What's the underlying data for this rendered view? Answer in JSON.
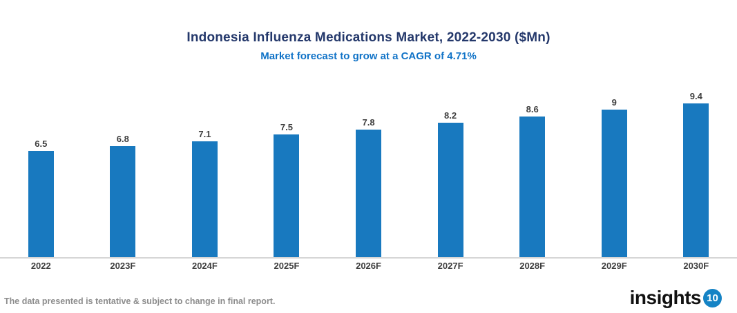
{
  "header": {
    "title": "Indonesia Influenza Medications Market, 2022-2030 ($Mn)",
    "subtitle": "Market forecast to grow at a CAGR of 4.71%"
  },
  "chart_data": {
    "type": "bar",
    "title": "Indonesia Influenza Medications Market, 2022-2030 ($Mn)",
    "subtitle": "Market forecast to grow at a CAGR of 4.71%",
    "categories": [
      "2022",
      "2023F",
      "2024F",
      "2025F",
      "2026F",
      "2027F",
      "2028F",
      "2029F",
      "2030F"
    ],
    "values": [
      6.5,
      6.8,
      7.1,
      7.5,
      7.8,
      8.2,
      8.6,
      9,
      9.4
    ],
    "data_labels": [
      "6.5",
      "6.8",
      "7.1",
      "7.5",
      "7.8",
      "8.2",
      "8.6",
      "9",
      "9.4"
    ],
    "xlabel": "",
    "ylabel": "",
    "ylim": [
      0,
      9.4
    ],
    "grid": false,
    "legend": "none",
    "bar_color": "#1879bf",
    "cagr_percent": "4.71%"
  },
  "footer": {
    "disclaimer": "The data presented is tentative & subject to change in final report.",
    "logo_word": "insights",
    "logo_number": "10"
  },
  "colors": {
    "title": "#24386b",
    "subtitle": "#1173c7",
    "bar": "#1879bf",
    "data_label": "#3f3f3f",
    "axis_label": "#3f3f3f",
    "axis_line": "#d6d6d6",
    "disclaimer": "#8c8c8c",
    "logo_black": "#111111",
    "logo_badge_blue": "#1583c5"
  }
}
